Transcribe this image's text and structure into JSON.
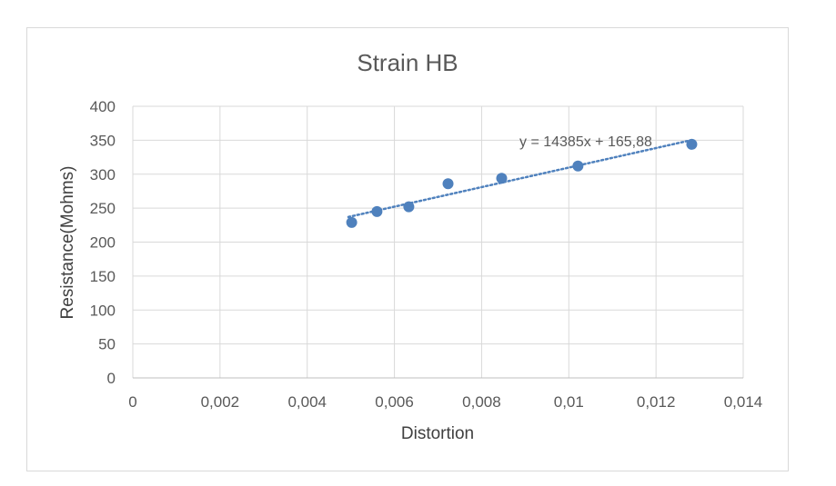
{
  "chart_data": {
    "type": "scatter",
    "title": "Strain HB",
    "xlabel": "Distortion",
    "ylabel": "Resistance(Mohms)",
    "xlim": [
      0,
      0.014
    ],
    "ylim": [
      0,
      400
    ],
    "x_ticks": [
      0,
      0.002,
      0.004,
      0.006,
      0.008,
      0.01,
      0.012,
      0.014
    ],
    "x_tick_labels": [
      "0",
      "0,002",
      "0,004",
      "0,006",
      "0,008",
      "0,01",
      "0,012",
      "0,014"
    ],
    "y_ticks": [
      0,
      50,
      100,
      150,
      200,
      250,
      300,
      350,
      400
    ],
    "y_tick_labels": [
      "0",
      "50",
      "100",
      "150",
      "200",
      "250",
      "300",
      "350",
      "400"
    ],
    "grid": true,
    "legend": "none",
    "series": [
      {
        "x": [
          0.00502,
          0.0056,
          0.00633,
          0.00723,
          0.00846,
          0.01021,
          0.01282
        ],
        "y": [
          229,
          245,
          252,
          286,
          294,
          312,
          344
        ],
        "color": "#4f81bd"
      }
    ],
    "trendline": {
      "type": "linear",
      "slope": 14385,
      "intercept": 165.88,
      "x_range": [
        0.00502,
        0.01282
      ],
      "style": "dotted",
      "color": "#4f81bd",
      "equation_label": "y = 14385x + 165,88"
    }
  }
}
